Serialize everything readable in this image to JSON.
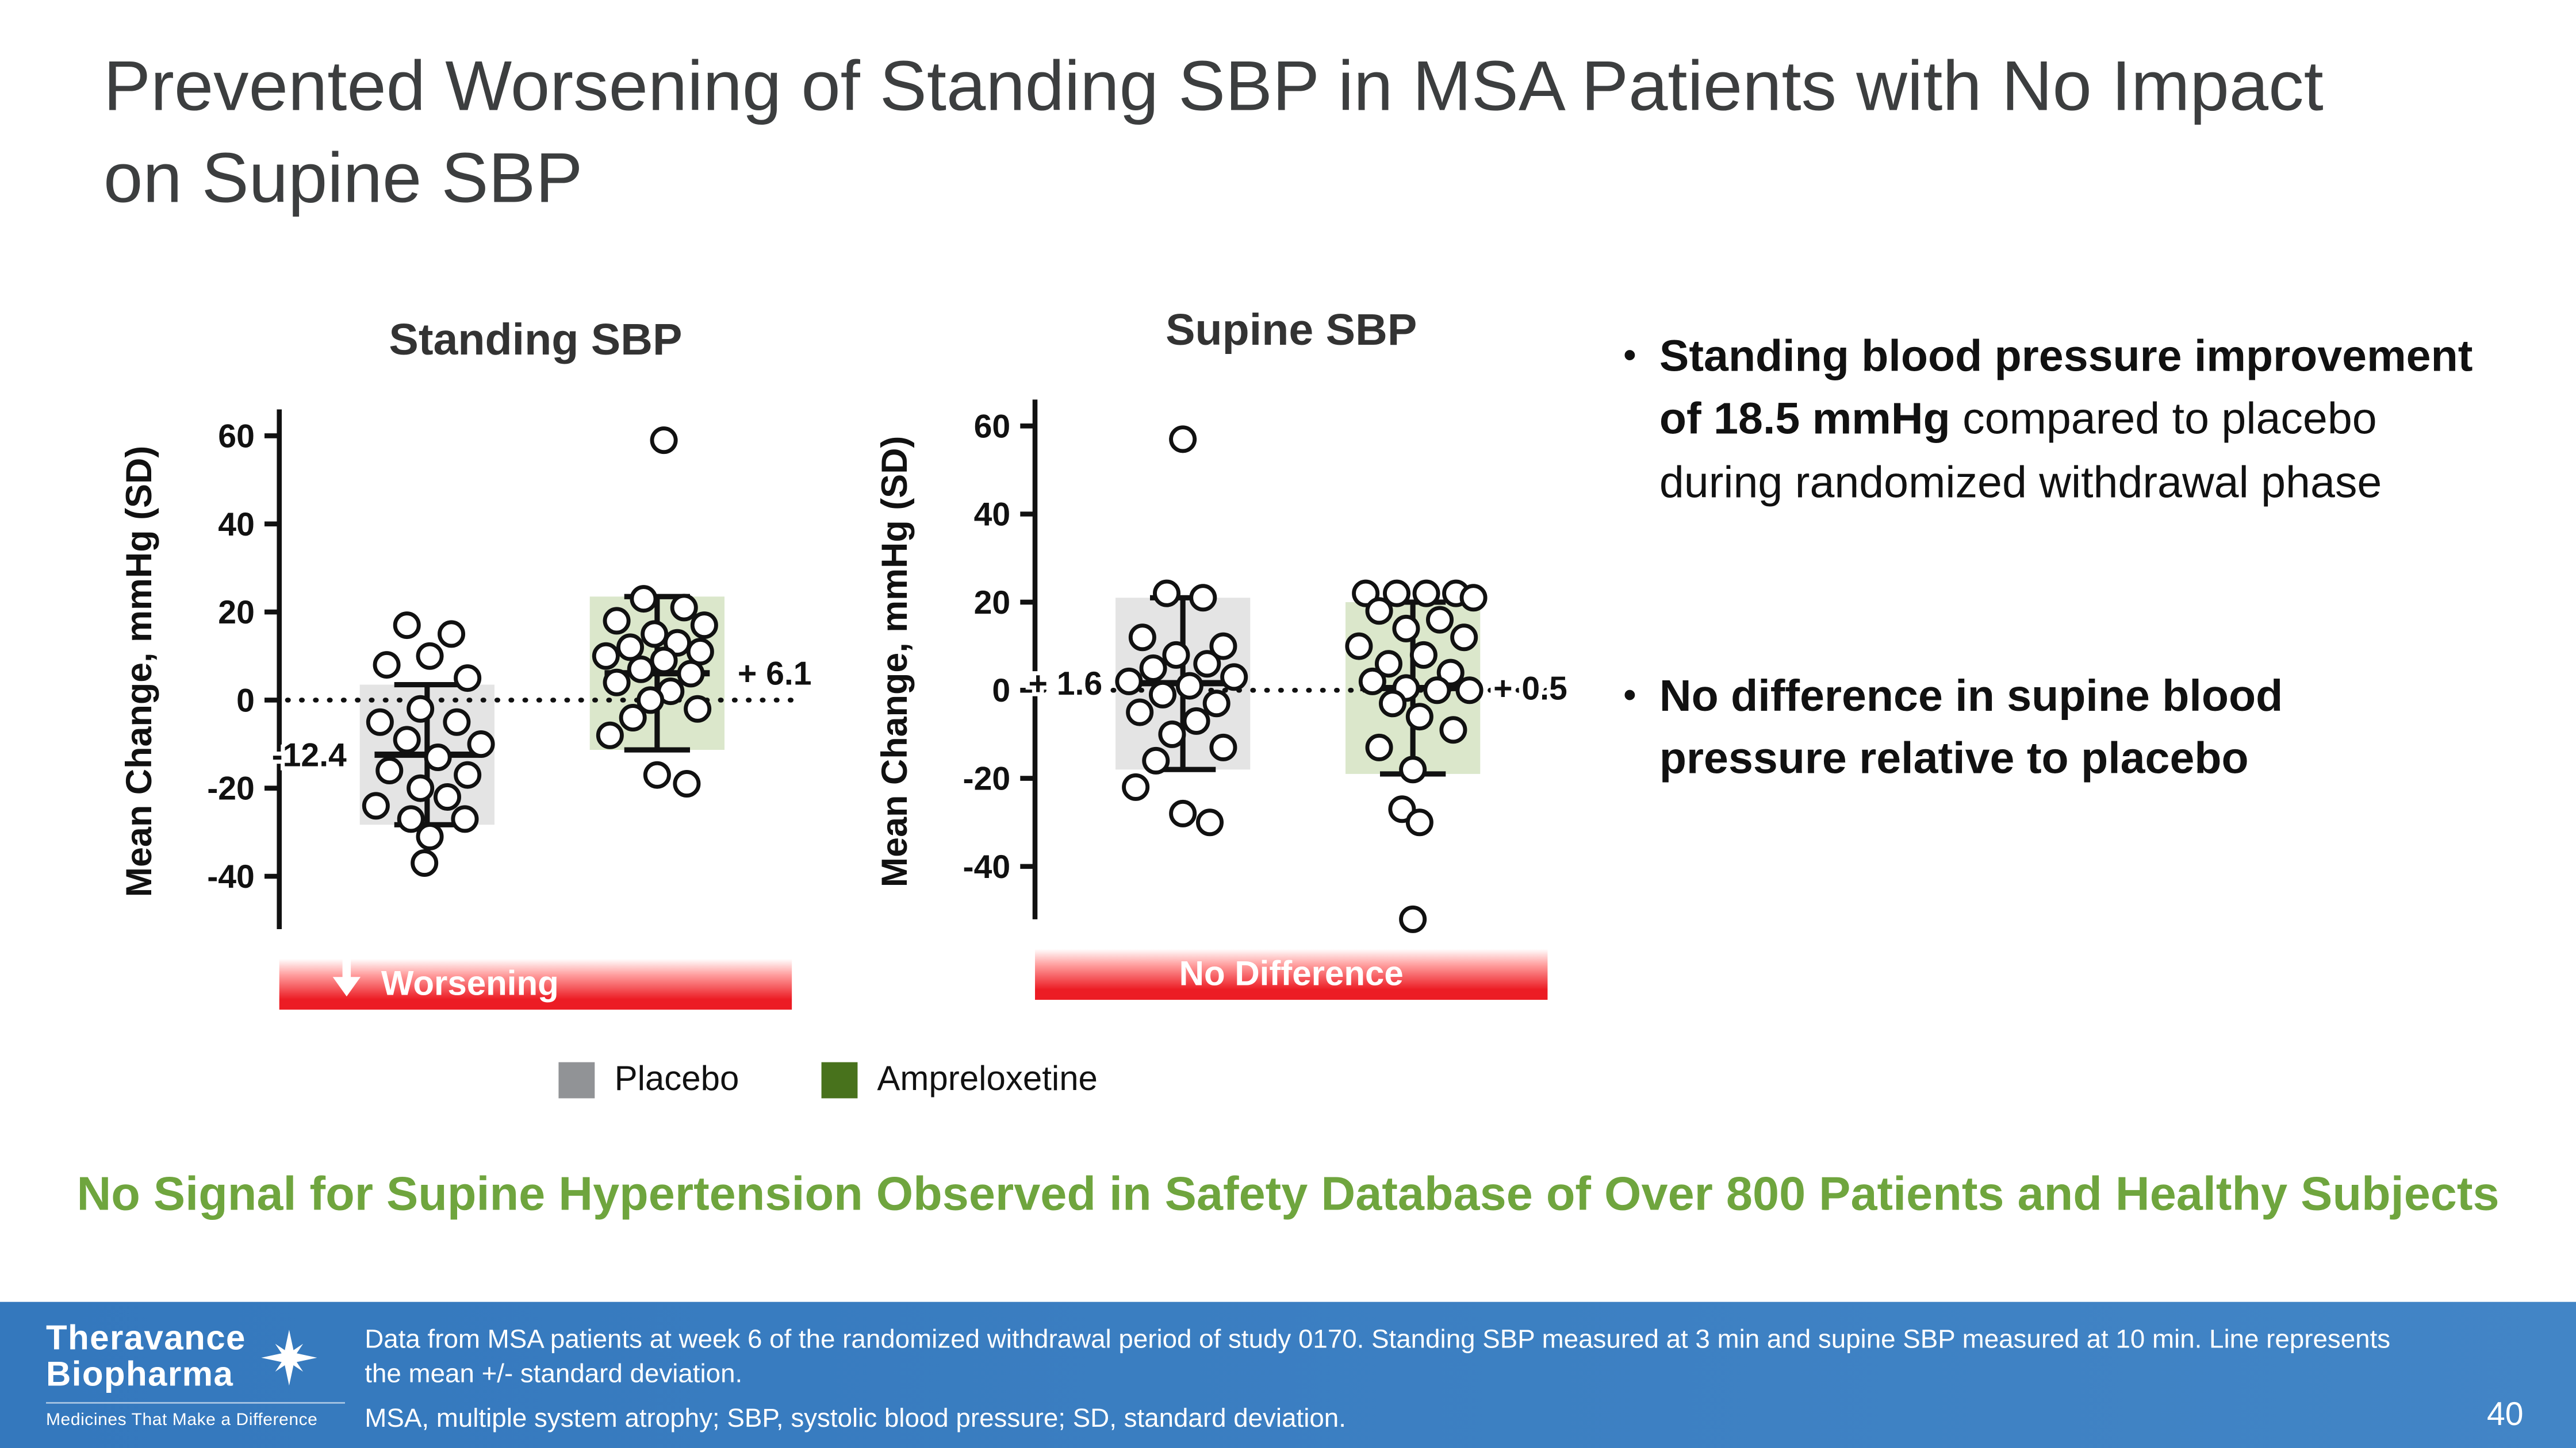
{
  "slide": {
    "title": "Prevented Worsening of Standing SBP in MSA Patients with No Impact on Supine SBP",
    "highlight": "No Signal for Supine Hypertension Observed in Safety Database of Over 800 Patients and Healthy Subjects",
    "page_number": "40",
    "bullet_char": "•"
  },
  "bullets": [
    {
      "bold": "Standing blood pressure improvement of 18.5 mmHg",
      "regular": " compared to placebo during randomized withdrawal phase"
    },
    {
      "bold": "No difference in supine blood pressure relative to placebo",
      "regular": ""
    }
  ],
  "legend": {
    "items": [
      {
        "label": "Placebo",
        "color": "#919396"
      },
      {
        "label": "Ampreloxetine",
        "color": "#48721c"
      }
    ]
  },
  "colors": {
    "accent_green_text": "#6fa53e",
    "band_red": "#ec1c24",
    "title_gray": "#3c3e3f",
    "footer_blue": "#3478bd"
  },
  "footer": {
    "logo_line1": "Theravance",
    "logo_line2": "Biopharma",
    "tagline": "Medicines That Make a Difference",
    "note_line1": "Data from MSA patients at week 6 of the randomized withdrawal period of study 0170. Standing SBP measured at 3 min and supine SBP measured at 10 min. Line represents",
    "note_line2": "the mean +/- standard deviation.",
    "note_line3": "MSA, multiple system atrophy; SBP, systolic blood pressure; SD, standard deviation."
  },
  "chart_data": [
    {
      "type": "scatter",
      "title": "Standing SBP",
      "ylabel": "Mean Change, mmHg (SD)",
      "ylim": [
        -55,
        68
      ],
      "yticks": [
        60,
        40,
        20,
        0,
        -20,
        -40
      ],
      "zero_reference_line": 0,
      "grid": false,
      "band_label": "Worsening",
      "band_arrow": true,
      "groups": [
        {
          "name": "Placebo",
          "mean": -12.4,
          "mean_label": "-12.4",
          "label_side": "left",
          "sd_high": 3.5,
          "sd_low": -28.3,
          "box_color": "#e4e4e4",
          "points": [
            [
              -0.15,
              17
            ],
            [
              0.18,
              15
            ],
            [
              0.02,
              10
            ],
            [
              -0.3,
              8
            ],
            [
              0.3,
              5
            ],
            [
              -0.05,
              -2
            ],
            [
              -0.35,
              -5
            ],
            [
              0.22,
              -5
            ],
            [
              -0.15,
              -9
            ],
            [
              0.4,
              -10
            ],
            [
              0.08,
              -13
            ],
            [
              -0.28,
              -16
            ],
            [
              0.3,
              -17
            ],
            [
              -0.05,
              -20
            ],
            [
              0.15,
              -22
            ],
            [
              -0.38,
              -24
            ],
            [
              -0.12,
              -27
            ],
            [
              0.28,
              -27
            ],
            [
              0.02,
              -31
            ],
            [
              -0.02,
              -37
            ]
          ]
        },
        {
          "name": "Ampreloxetine",
          "mean": 6.1,
          "mean_label": "+ 6.1",
          "label_side": "right",
          "sd_high": 23.5,
          "sd_low": -11.3,
          "box_color": "#dbe7cb",
          "points": [
            [
              0.05,
              59
            ],
            [
              -0.1,
              23
            ],
            [
              0.2,
              21
            ],
            [
              -0.3,
              18
            ],
            [
              0.35,
              17
            ],
            [
              -0.02,
              15
            ],
            [
              0.15,
              13
            ],
            [
              -0.2,
              12
            ],
            [
              0.32,
              11
            ],
            [
              -0.38,
              10
            ],
            [
              0.05,
              9
            ],
            [
              -0.12,
              7
            ],
            [
              0.25,
              6
            ],
            [
              -0.3,
              4
            ],
            [
              0.1,
              2
            ],
            [
              -0.05,
              0
            ],
            [
              0.3,
              -2
            ],
            [
              -0.18,
              -4
            ],
            [
              -0.35,
              -8
            ],
            [
              0,
              -17
            ],
            [
              0.22,
              -19
            ]
          ]
        }
      ]
    },
    {
      "type": "scatter",
      "title": "Supine SBP",
      "ylabel": "Mean Change, mmHg (SD)",
      "ylim": [
        -55,
        68
      ],
      "yticks": [
        60,
        40,
        20,
        0,
        -20,
        -40
      ],
      "zero_reference_line": 0,
      "grid": false,
      "band_label": "No Difference",
      "band_arrow": false,
      "groups": [
        {
          "name": "Placebo",
          "mean": 1.6,
          "mean_label": "+ 1.6",
          "label_side": "left",
          "sd_high": 21,
          "sd_low": -18,
          "box_color": "#e4e4e4",
          "points": [
            [
              0,
              57
            ],
            [
              -0.12,
              22
            ],
            [
              0.15,
              21
            ],
            [
              -0.3,
              12
            ],
            [
              0.3,
              10
            ],
            [
              -0.05,
              8
            ],
            [
              0.18,
              6
            ],
            [
              -0.22,
              5
            ],
            [
              0.38,
              3
            ],
            [
              -0.4,
              2
            ],
            [
              0.05,
              1
            ],
            [
              -0.15,
              -1
            ],
            [
              0.25,
              -3
            ],
            [
              -0.32,
              -5
            ],
            [
              0.1,
              -7
            ],
            [
              -0.08,
              -10
            ],
            [
              0.3,
              -13
            ],
            [
              -0.2,
              -16
            ],
            [
              -0.35,
              -22
            ],
            [
              0,
              -28
            ],
            [
              0.2,
              -30
            ]
          ]
        },
        {
          "name": "Ampreloxetine",
          "mean": 0.5,
          "mean_label": "+ 0.5",
          "label_side": "right",
          "sd_high": 20,
          "sd_low": -19,
          "box_color": "#dbe7cb",
          "points": [
            [
              -0.35,
              22
            ],
            [
              -0.12,
              22
            ],
            [
              0.1,
              22
            ],
            [
              0.32,
              22
            ],
            [
              0.45,
              21
            ],
            [
              -0.25,
              18
            ],
            [
              0.2,
              16
            ],
            [
              -0.05,
              14
            ],
            [
              0.38,
              12
            ],
            [
              -0.4,
              10
            ],
            [
              0.08,
              8
            ],
            [
              -0.18,
              6
            ],
            [
              0.28,
              4
            ],
            [
              -0.3,
              2
            ],
            [
              -0.05,
              0.5
            ],
            [
              0.18,
              0
            ],
            [
              0.42,
              0
            ],
            [
              -0.15,
              -3
            ],
            [
              0.05,
              -6
            ],
            [
              0.3,
              -9
            ],
            [
              -0.25,
              -13
            ],
            [
              0,
              -18
            ],
            [
              -0.08,
              -27
            ],
            [
              0.05,
              -30
            ],
            [
              0,
              -52
            ]
          ]
        }
      ]
    }
  ]
}
